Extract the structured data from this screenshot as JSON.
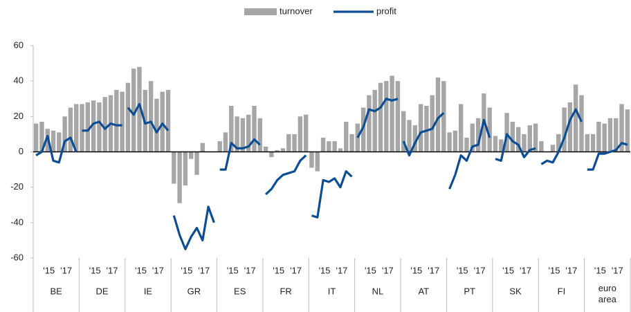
{
  "chart_data": {
    "type": "bar",
    "groups": [
      "BE",
      "DE",
      "IE",
      "GR",
      "ES",
      "FR",
      "IT",
      "NL",
      "AT",
      "PT",
      "SK",
      "FI",
      "euro area"
    ],
    "subcategories": [
      null,
      null,
      "'15",
      null,
      null,
      "'17",
      null,
      null
    ],
    "series": [
      {
        "name": "turnover",
        "type": "bar",
        "color": "#a6a6a6",
        "values": [
          [
            16,
            17,
            13,
            12,
            11,
            20,
            25,
            27
          ],
          [
            27,
            28,
            29,
            28,
            31,
            32,
            35,
            34
          ],
          [
            39,
            47,
            48,
            35,
            40,
            30,
            34,
            35
          ],
          [
            -18,
            -29,
            -19,
            -4,
            -13,
            5,
            null,
            null
          ],
          [
            6,
            11,
            26,
            20,
            19,
            21,
            26,
            19
          ],
          [
            3,
            -3,
            1,
            2,
            10,
            10,
            20,
            21
          ],
          [
            -9,
            -11,
            8,
            6,
            6,
            2,
            17,
            10
          ],
          [
            16,
            25,
            32,
            35,
            39,
            40,
            43,
            40
          ],
          [
            23,
            18,
            15,
            27,
            26,
            32,
            42,
            40
          ],
          [
            11,
            12,
            27,
            8,
            16,
            19,
            33,
            25
          ],
          [
            9,
            7,
            22,
            17,
            14,
            10,
            15,
            16
          ],
          [
            6,
            null,
            4,
            10,
            25,
            28,
            38,
            32
          ],
          [
            10,
            10,
            17,
            16,
            19,
            19,
            27,
            24
          ]
        ]
      },
      {
        "name": "profit",
        "type": "line",
        "color": "#0b4e96",
        "values": [
          [
            -2,
            0,
            9,
            -5,
            -6,
            6,
            8,
            0
          ],
          [
            12,
            12,
            16,
            17,
            13,
            16,
            15,
            15
          ],
          [
            25,
            21,
            27,
            16,
            17,
            11,
            16,
            12
          ],
          [
            -36,
            -47,
            -55,
            -48,
            -43,
            -50,
            -31,
            -40
          ],
          [
            -10,
            -10,
            5,
            2,
            2,
            3,
            7,
            4
          ],
          [
            -24,
            -21,
            -16,
            -13,
            -12,
            -11,
            -5,
            -2
          ],
          [
            -36,
            -37,
            -16,
            -17,
            -15,
            -20,
            -11,
            -14
          ],
          [
            8,
            14,
            24,
            23,
            25,
            30,
            29,
            30
          ],
          [
            6,
            -2,
            5,
            11,
            12,
            13,
            19,
            22
          ],
          [
            -21,
            -13,
            -2,
            -5,
            3,
            4,
            18,
            8
          ],
          [
            -4,
            -5,
            10,
            6,
            4,
            -3,
            1,
            2
          ],
          [
            -7,
            -5,
            -6,
            0,
            8,
            18,
            24,
            17
          ],
          [
            -10,
            -10,
            -1,
            -1,
            0,
            1,
            5,
            4
          ]
        ]
      }
    ],
    "ylim": [
      -60,
      60
    ],
    "yticks": [
      -60,
      -40,
      -20,
      0,
      20,
      40,
      60
    ],
    "legend": "top"
  }
}
